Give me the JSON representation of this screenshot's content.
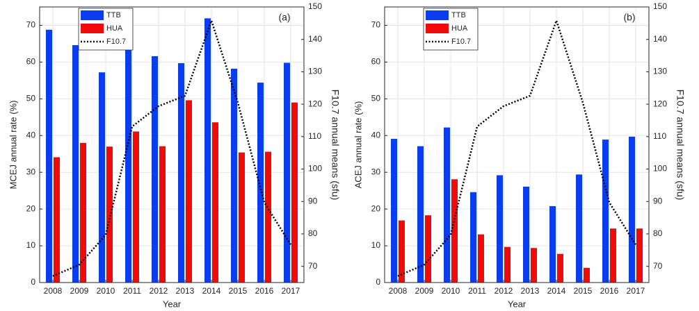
{
  "chart_data": [
    {
      "type": "bar",
      "annotation": "(a)",
      "xlabel": "Year",
      "ylabel": "MCEJ annual rate (%)",
      "y2label": "F10.7 annual means (sfu)",
      "categories": [
        "2008",
        "2009",
        "2010",
        "2011",
        "2012",
        "2013",
        "2014",
        "2015",
        "2016",
        "2017"
      ],
      "series": [
        {
          "name": "TTB",
          "color": "#0a3cf0",
          "values": [
            68.8,
            64.6,
            57.2,
            64.1,
            61.6,
            59.7,
            71.9,
            58.2,
            54.4,
            59.8
          ]
        },
        {
          "name": "HUA",
          "color": "#f00a0a",
          "values": [
            34.1,
            38.0,
            37.0,
            41.1,
            37.1,
            49.6,
            43.6,
            35.4,
            35.6,
            49.0
          ]
        },
        {
          "name": "F10.7",
          "color": "#000000",
          "axis": "y2",
          "values": [
            67.0,
            70.5,
            79.7,
            113.1,
            119.4,
            122.6,
            145.8,
            120.5,
            89.7,
            76.7
          ]
        }
      ],
      "ylim": [
        0,
        75
      ],
      "yticks": [
        0,
        10,
        20,
        30,
        40,
        50,
        60,
        70
      ],
      "y2lim": [
        65,
        150
      ],
      "y2ticks": [
        70,
        80,
        90,
        100,
        110,
        120,
        130,
        140,
        150
      ],
      "grid": true
    },
    {
      "type": "bar",
      "annotation": "(b)",
      "xlabel": "Year",
      "ylabel": "ACEJ annual rate (%)",
      "y2label": "F10.7 annual means (sfu)",
      "categories": [
        "2008",
        "2009",
        "2010",
        "2011",
        "2012",
        "2013",
        "2014",
        "2015",
        "2016",
        "2017"
      ],
      "series": [
        {
          "name": "TTB",
          "color": "#0a3cf0",
          "values": [
            39.1,
            37.1,
            42.2,
            24.6,
            29.2,
            26.1,
            20.8,
            29.4,
            38.9,
            39.7
          ]
        },
        {
          "name": "HUA",
          "color": "#f00a0a",
          "values": [
            16.9,
            18.3,
            28.1,
            13.1,
            9.7,
            9.4,
            7.8,
            4.0,
            14.7,
            14.7
          ]
        },
        {
          "name": "F10.7",
          "color": "#000000",
          "axis": "y2",
          "values": [
            67.0,
            70.5,
            79.7,
            113.1,
            119.4,
            122.6,
            145.8,
            120.5,
            89.7,
            76.7
          ]
        }
      ],
      "ylim": [
        0,
        75
      ],
      "yticks": [
        0,
        10,
        20,
        30,
        40,
        50,
        60,
        70
      ],
      "y2lim": [
        65,
        150
      ],
      "y2ticks": [
        70,
        80,
        90,
        100,
        110,
        120,
        130,
        140,
        150
      ],
      "grid": true
    }
  ]
}
